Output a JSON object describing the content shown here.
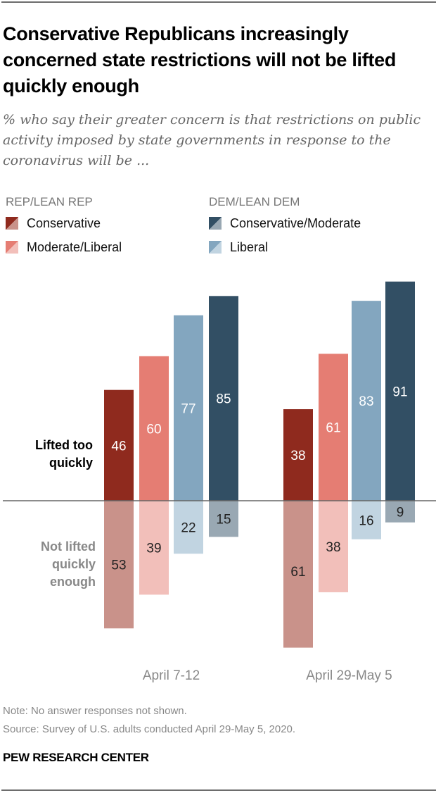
{
  "title": "Conservative Republicans increasingly concerned state restrictions will not be lifted quickly enough",
  "subtitle": "% who say their greater concern is that restrictions on public activity imposed by state governments in response to the coronavirus will be ...",
  "legend": {
    "rep_header": "REP/LEAN REP",
    "dem_header": "DEM/LEAN DEM",
    "items": [
      {
        "label": "Conservative",
        "color_top": "#8f2a1e",
        "color_bottom": "#c9928a"
      },
      {
        "label": "Moderate/Liberal",
        "color_top": "#e57d73",
        "color_bottom": "#f2bfba"
      },
      {
        "label": "Conservative/Moderate",
        "color_top": "#324f64",
        "color_bottom": "#99a8b3"
      },
      {
        "label": "Liberal",
        "color_top": "#83a6bf",
        "color_bottom": "#c1d4e1"
      }
    ]
  },
  "row_labels": {
    "top": "Lifted too quickly",
    "bottom": "Not lifted quickly enough"
  },
  "note": "Note: No answer responses not shown.",
  "source": "Source: Survey of U.S. adults conducted April 29-May 5, 2020.",
  "brand": "PEW RESEARCH CENTER",
  "chart_data": {
    "type": "bar",
    "subtype": "diverging-grouped",
    "title": "Conservative Republicans increasingly concerned state restrictions will not be lifted quickly enough",
    "categories": [
      "April 7-12",
      "April 29-May 5"
    ],
    "series": [
      {
        "name": "Conservative",
        "group": "REP/LEAN REP",
        "lifted_too_quickly": [
          46,
          38
        ],
        "not_lifted_quickly_enough": [
          53,
          61
        ],
        "color_top": "#8f2a1e",
        "color_bottom": "#c9928a"
      },
      {
        "name": "Moderate/Liberal",
        "group": "REP/LEAN REP",
        "lifted_too_quickly": [
          60,
          61
        ],
        "not_lifted_quickly_enough": [
          39,
          38
        ],
        "color_top": "#e57d73",
        "color_bottom": "#f2bfba"
      },
      {
        "name": "Liberal",
        "group": "DEM/LEAN DEM",
        "lifted_too_quickly": [
          77,
          83
        ],
        "not_lifted_quickly_enough": [
          22,
          16
        ],
        "color_top": "#83a6bf",
        "color_bottom": "#c1d4e1"
      },
      {
        "name": "Conservative/Moderate",
        "group": "DEM/LEAN DEM",
        "lifted_too_quickly": [
          85,
          91
        ],
        "not_lifted_quickly_enough": [
          15,
          9
        ],
        "color_top": "#324f64",
        "color_bottom": "#99a8b3"
      }
    ],
    "xlabel": "",
    "ylabel": "%",
    "ylim": [
      -61,
      91
    ],
    "grid": false,
    "legend_position": "top-left"
  }
}
